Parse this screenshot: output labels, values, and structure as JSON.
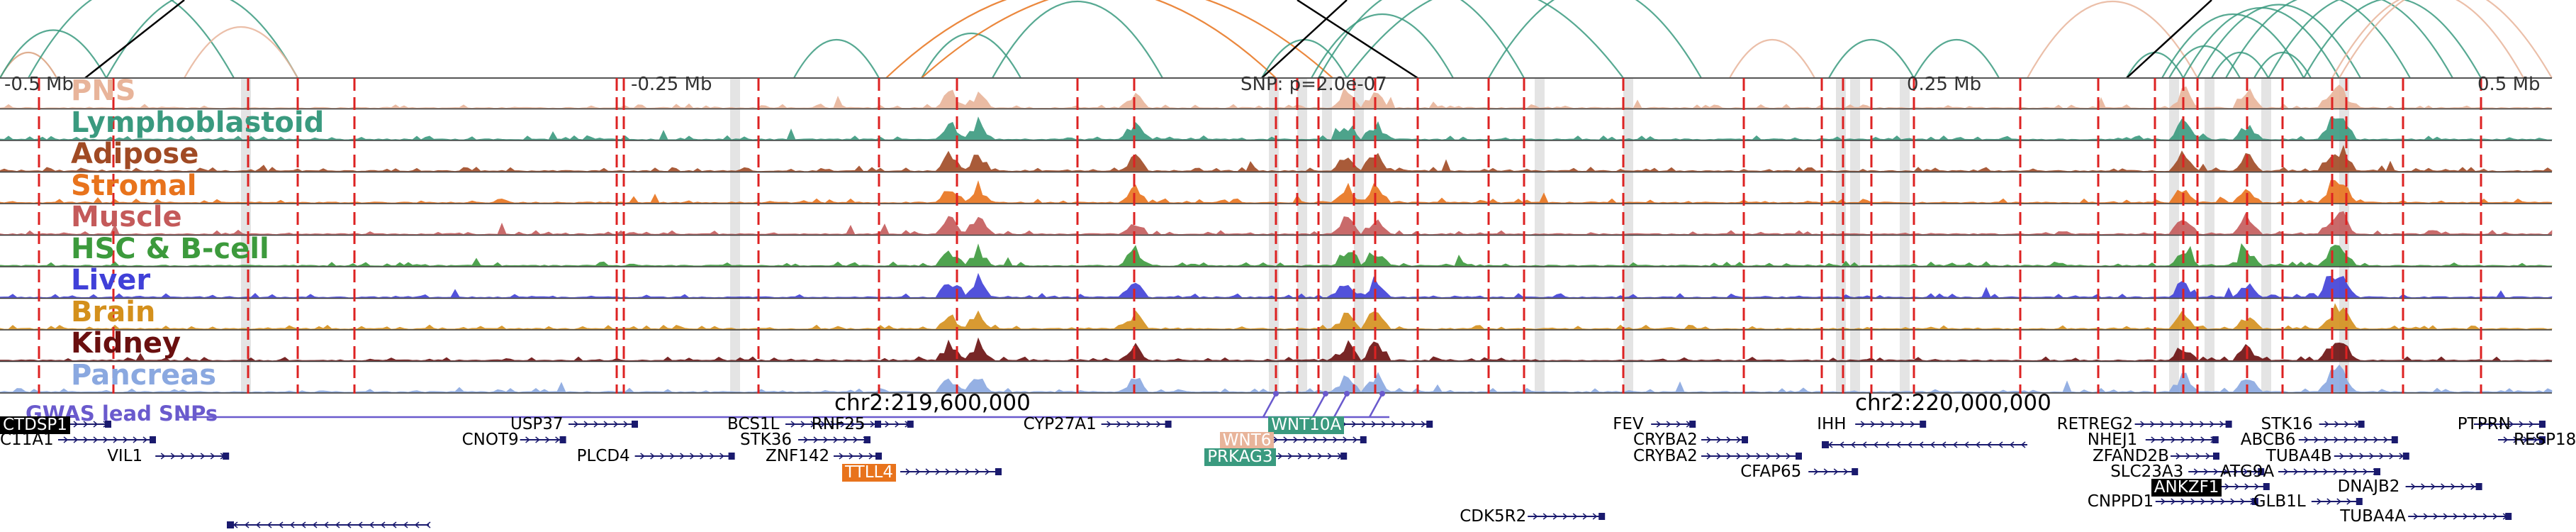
{
  "axis": {
    "ticks": [
      {
        "label": "-0.5 Mb",
        "pos": 0.0
      },
      {
        "label": "-0.25 Mb",
        "pos": 0.25
      },
      {
        "label": "SNP: p=2.0e-07",
        "pos": 0.5
      },
      {
        "label": "0.25 Mb",
        "pos": 0.75
      },
      {
        "label": "0.5 Mb",
        "pos": 1.0
      }
    ]
  },
  "tracks": [
    {
      "name": "PNS",
      "color": "#e8b49a"
    },
    {
      "name": "Lymphoblastoid",
      "color": "#3a9a7f"
    },
    {
      "name": "Adipose",
      "color": "#a04a24"
    },
    {
      "name": "Stromal",
      "color": "#e8731c"
    },
    {
      "name": "Muscle",
      "color": "#c45a5a"
    },
    {
      "name": "HSC & B-cell",
      "color": "#3c9a3c"
    },
    {
      "name": "Liver",
      "color": "#4040d8"
    },
    {
      "name": "Brain",
      "color": "#d4901c"
    },
    {
      "name": "Kidney",
      "color": "#6a0f0f"
    },
    {
      "name": "Pancreas",
      "color": "#8aa8e0"
    }
  ],
  "chromosome_labels": [
    {
      "label": "chr2:219,600,000",
      "pos": 0.37
    },
    {
      "label": "chr2:220,000,000",
      "pos": 0.77
    }
  ],
  "gwas": {
    "label": "GWAS lead SNPs",
    "color": "#6a5acd"
  },
  "genes": [
    {
      "name": "CTDSP1",
      "row": 0,
      "pos": 0.0,
      "highlight": "#000000",
      "text_color": "#ffffff"
    },
    {
      "name": "USP37",
      "row": 0,
      "pos": 0.2
    },
    {
      "name": "BCS1L",
      "row": 0,
      "pos": 0.285
    },
    {
      "name": "RNF25",
      "row": 0,
      "pos": 0.318
    },
    {
      "name": "CYP27A1",
      "row": 0,
      "pos": 0.401
    },
    {
      "name": "WNT10A",
      "row": 0,
      "pos": 0.497,
      "highlight": "#3a9a7f",
      "text_color": "#ffffff"
    },
    {
      "name": "FEV",
      "row": 0,
      "pos": 0.632
    },
    {
      "name": "IHH",
      "row": 0,
      "pos": 0.712
    },
    {
      "name": "RETREG2",
      "row": 0,
      "pos": 0.806
    },
    {
      "name": "STK16",
      "row": 0,
      "pos": 0.886
    },
    {
      "name": "PTPRN",
      "row": 0,
      "pos": 0.963
    },
    {
      "name": "C11A1",
      "row": 1,
      "pos": -0.016
    },
    {
      "name": "CNOT9",
      "row": 1,
      "pos": 0.181
    },
    {
      "name": "STK36",
      "row": 1,
      "pos": 0.29
    },
    {
      "name": "WNT6",
      "row": 1,
      "pos": 0.478,
      "highlight": "#e8b49a",
      "text_color": "#ffffff"
    },
    {
      "name": "CRYBA2",
      "row": 1,
      "pos": 0.64
    },
    {
      "name": "NHEJ1",
      "row": 1,
      "pos": 0.818
    },
    {
      "name": "ABCB6",
      "row": 1,
      "pos": 0.878
    },
    {
      "name": "RESP18",
      "row": 1,
      "pos": 0.985
    },
    {
      "name": "VIL1",
      "row": 2,
      "pos": 0.042
    },
    {
      "name": "PLCD4",
      "row": 2,
      "pos": 0.226
    },
    {
      "name": "ZNF142",
      "row": 2,
      "pos": 0.3
    },
    {
      "name": "PRKAG3",
      "row": 2,
      "pos": 0.472,
      "highlight": "#3a9a7f",
      "text_color": "#ffffff"
    },
    {
      "name": "CRYBA2",
      "row": 2,
      "pos": 0.64
    },
    {
      "name": "ZFAND2B",
      "row": 2,
      "pos": 0.82
    },
    {
      "name": "TUBA4B",
      "row": 2,
      "pos": 0.888
    },
    {
      "name": "TTLL4",
      "row": 3,
      "pos": 0.33,
      "highlight": "#e8731c",
      "text_color": "#ffffff"
    },
    {
      "name": "CFAP65",
      "row": 3,
      "pos": 0.682
    },
    {
      "name": "SLC23A3",
      "row": 3,
      "pos": 0.827
    },
    {
      "name": "ATG9A",
      "row": 3,
      "pos": 0.87
    },
    {
      "name": "ANKZF1",
      "row": 4,
      "pos": 0.843,
      "highlight": "#000000",
      "text_color": "#ffffff"
    },
    {
      "name": "DNAJB2",
      "row": 4,
      "pos": 0.916
    },
    {
      "name": "CNPPD1",
      "row": 5,
      "pos": 0.818
    },
    {
      "name": "GLB1L",
      "row": 5,
      "pos": 0.883
    },
    {
      "name": "CDK5R2",
      "row": 6,
      "pos": 0.572
    },
    {
      "name": "TUBA4A",
      "row": 6,
      "pos": 0.917
    }
  ]
}
